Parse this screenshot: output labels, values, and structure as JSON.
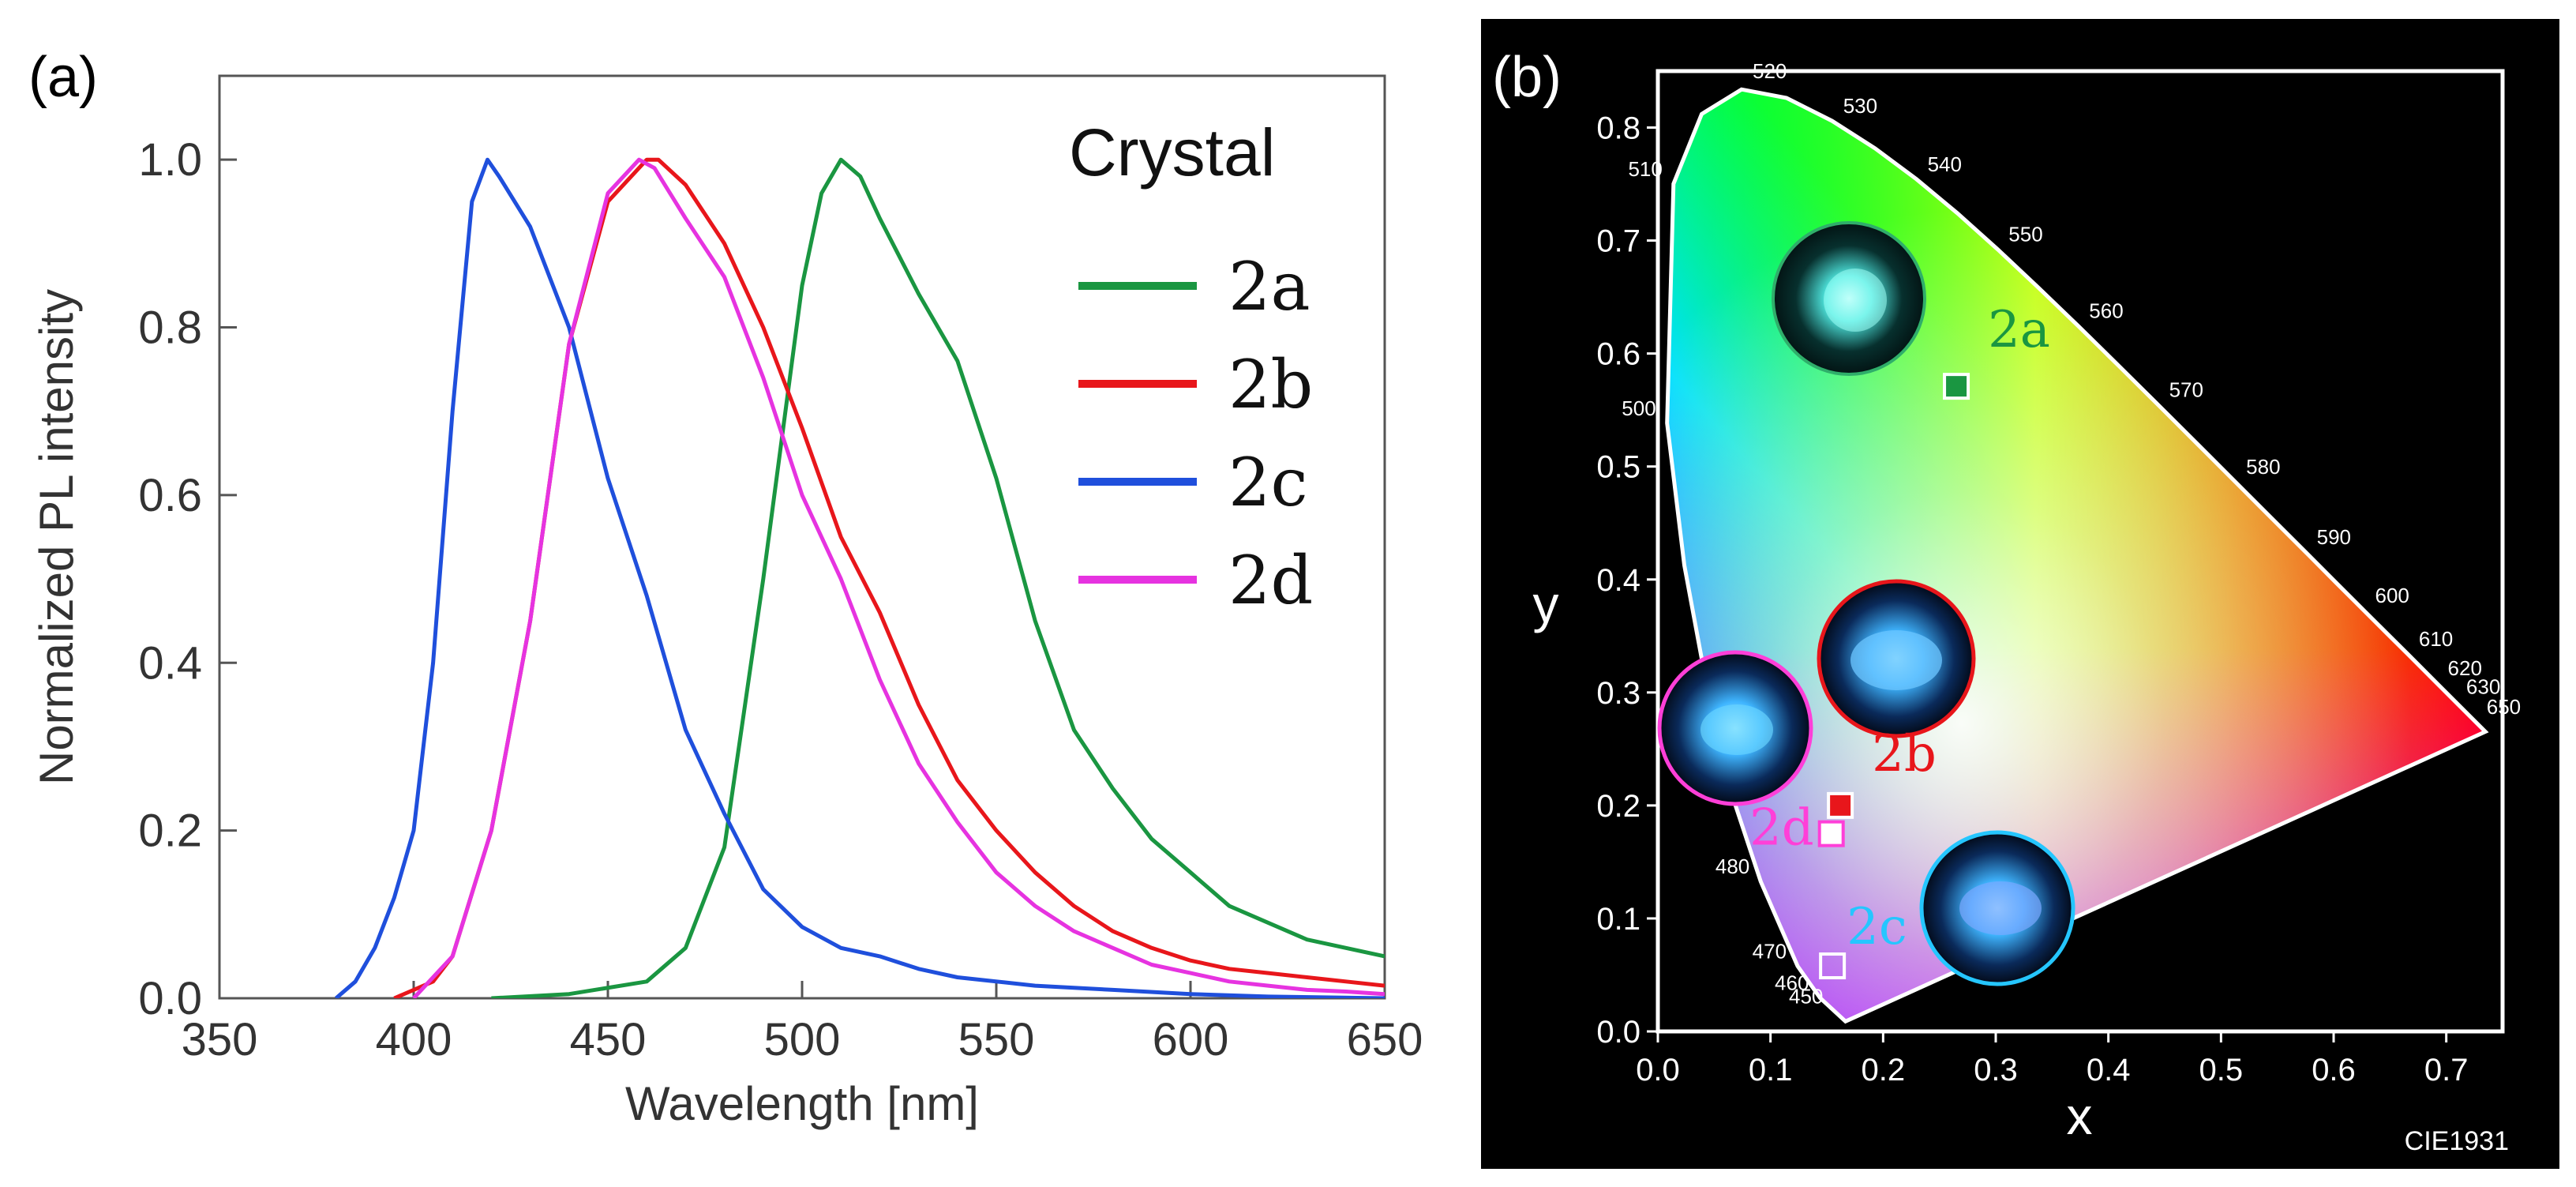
{
  "panel_a_label": "(a)",
  "panel_b_label": "(b)",
  "chart_data": [
    {
      "type": "line",
      "xlabel": "Wavelength [nm]",
      "ylabel": "Normalized PL intensity",
      "xlim": [
        350,
        650
      ],
      "ylim": [
        0,
        1.1
      ],
      "xticks": [
        "350",
        "400",
        "450",
        "500",
        "550",
        "600",
        "650"
      ],
      "yticks": [
        "0.0",
        "0.2",
        "0.4",
        "0.6",
        "0.8",
        "1.0"
      ],
      "legend_title": "Crystal",
      "series": [
        {
          "name": "2a",
          "color": "#1a9641",
          "x": [
            420,
            440,
            460,
            470,
            480,
            490,
            500,
            505,
            510,
            515,
            520,
            530,
            540,
            550,
            560,
            570,
            580,
            590,
            600,
            610,
            620,
            630,
            640,
            650
          ],
          "y": [
            0,
            0.005,
            0.02,
            0.06,
            0.18,
            0.5,
            0.85,
            0.96,
            1.0,
            0.98,
            0.93,
            0.84,
            0.76,
            0.62,
            0.45,
            0.32,
            0.25,
            0.19,
            0.15,
            0.11,
            0.09,
            0.07,
            0.06,
            0.05
          ]
        },
        {
          "name": "2b",
          "color": "#e8161b",
          "x": [
            395,
            405,
            410,
            420,
            430,
            440,
            450,
            460,
            463,
            470,
            480,
            490,
            500,
            510,
            520,
            530,
            540,
            550,
            560,
            570,
            580,
            590,
            600,
            610,
            620,
            630,
            640,
            650
          ],
          "y": [
            0,
            0.02,
            0.05,
            0.2,
            0.45,
            0.78,
            0.95,
            1.0,
            1.0,
            0.97,
            0.9,
            0.8,
            0.68,
            0.55,
            0.46,
            0.35,
            0.26,
            0.2,
            0.15,
            0.11,
            0.08,
            0.06,
            0.045,
            0.035,
            0.03,
            0.025,
            0.02,
            0.015
          ]
        },
        {
          "name": "2c",
          "color": "#1f4fdc",
          "x": [
            380,
            385,
            390,
            395,
            400,
            405,
            410,
            415,
            419,
            422,
            430,
            440,
            450,
            460,
            470,
            480,
            490,
            500,
            510,
            520,
            530,
            540,
            560,
            580,
            600,
            620,
            650
          ],
          "y": [
            0,
            0.02,
            0.06,
            0.12,
            0.2,
            0.4,
            0.7,
            0.95,
            1.0,
            0.98,
            0.92,
            0.8,
            0.62,
            0.48,
            0.32,
            0.22,
            0.13,
            0.085,
            0.06,
            0.05,
            0.035,
            0.025,
            0.015,
            0.01,
            0.005,
            0.002,
            0.0
          ]
        },
        {
          "name": "2d",
          "color": "#e633e0",
          "x": [
            400,
            410,
            420,
            430,
            440,
            450,
            458,
            462,
            470,
            480,
            490,
            500,
            510,
            520,
            530,
            540,
            550,
            560,
            570,
            580,
            590,
            600,
            610,
            620,
            630,
            640,
            650
          ],
          "y": [
            0,
            0.05,
            0.2,
            0.45,
            0.78,
            0.96,
            1.0,
            0.99,
            0.93,
            0.86,
            0.74,
            0.6,
            0.5,
            0.38,
            0.28,
            0.21,
            0.15,
            0.11,
            0.08,
            0.06,
            0.04,
            0.03,
            0.02,
            0.015,
            0.01,
            0.008,
            0.005
          ]
        }
      ]
    },
    {
      "type": "scatter",
      "title_corner": "CIE1931",
      "xlabel": "x",
      "ylabel": "y",
      "xlim": [
        0.0,
        0.75
      ],
      "ylim": [
        0.0,
        0.85
      ],
      "xticks": [
        "0.0",
        "0.1",
        "0.2",
        "0.3",
        "0.4",
        "0.5",
        "0.6",
        "0.7"
      ],
      "yticks": [
        "0.0",
        "0.1",
        "0.2",
        "0.3",
        "0.4",
        "0.5",
        "0.6",
        "0.7",
        "0.8"
      ],
      "locus_labels": [
        "450",
        "460",
        "470",
        "480",
        "500",
        "510",
        "520",
        "530",
        "540",
        "550",
        "560",
        "570",
        "580",
        "590",
        "600",
        "610",
        "620",
        "630",
        "650"
      ],
      "points": [
        {
          "name": "2a",
          "x": 0.265,
          "y": 0.571,
          "color": "#1a9641"
        },
        {
          "name": "2b",
          "x": 0.162,
          "y": 0.2,
          "color": "#e8161b"
        },
        {
          "name": "2c",
          "x": 0.155,
          "y": 0.058,
          "color": "#25c6ff"
        },
        {
          "name": "2d",
          "x": 0.154,
          "y": 0.175,
          "color": "#ff3fd8"
        }
      ]
    }
  ]
}
